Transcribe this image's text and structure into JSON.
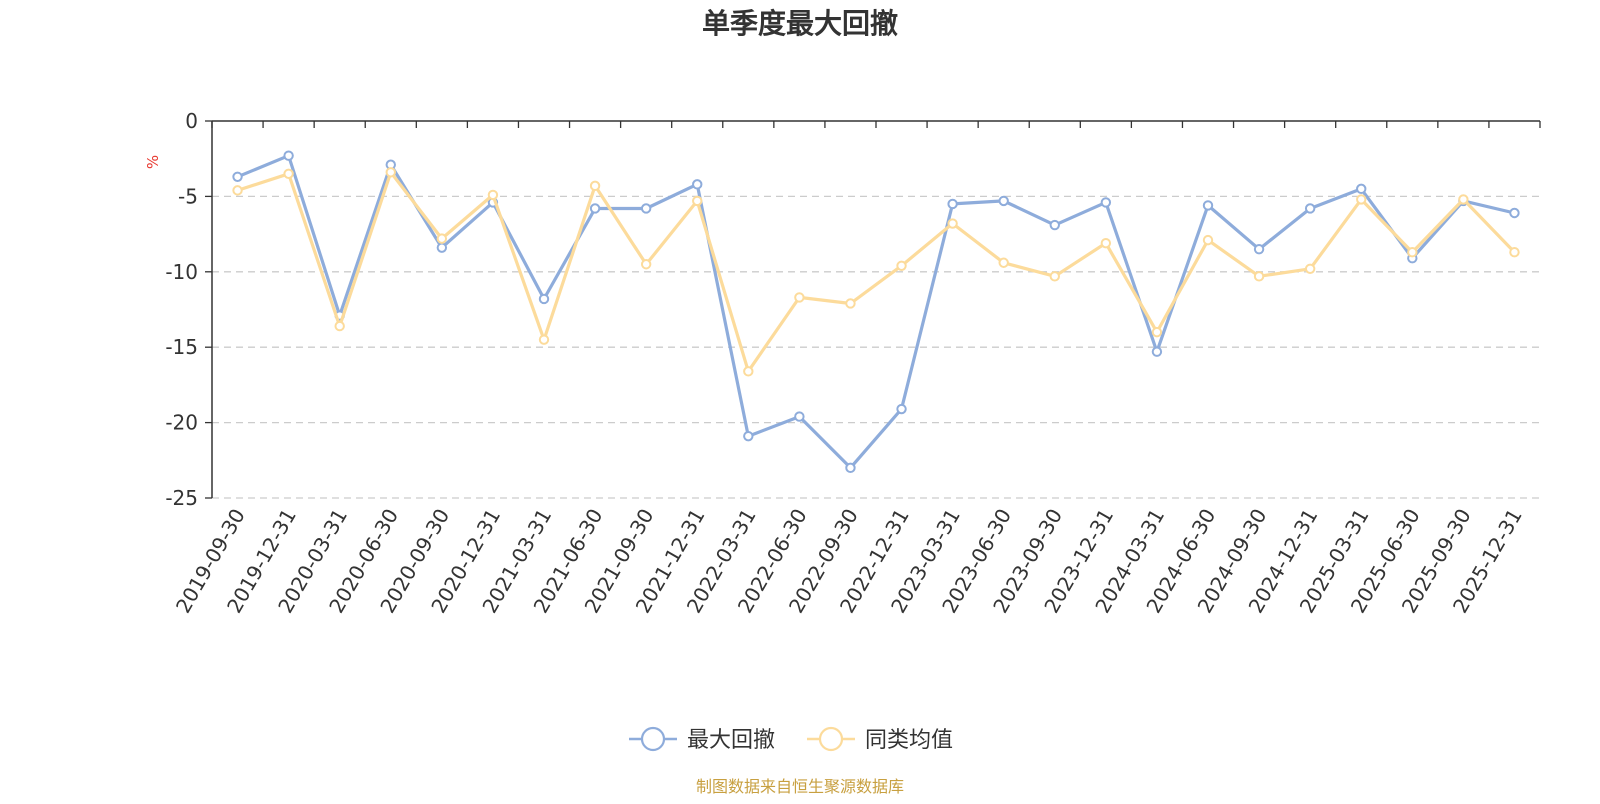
{
  "chart_data": {
    "type": "line",
    "title": "单季度最大回撤",
    "ylabel": "%",
    "ylim": [
      -25,
      0
    ],
    "yticks": [
      0,
      -5,
      -10,
      -15,
      -20,
      -25
    ],
    "grid": true,
    "legend_position": "bottom-center",
    "x": [
      "2019-09-30",
      "2019-12-31",
      "2020-03-31",
      "2020-06-30",
      "2020-09-30",
      "2020-12-31",
      "2021-03-31",
      "2021-06-30",
      "2021-09-30",
      "2021-12-31",
      "2022-03-31",
      "2022-06-30",
      "2022-09-30",
      "2022-12-31",
      "2023-03-31",
      "2023-06-30",
      "2023-09-30",
      "2023-12-31",
      "2024-03-31",
      "2024-06-30",
      "2024-09-30",
      "2024-12-31",
      "2025-03-31",
      "2025-06-30",
      "2025-09-30",
      "2025-12-31"
    ],
    "series": [
      {
        "name": "最大回撤",
        "color": "#8eacdb",
        "values": [
          -3.7,
          -2.3,
          -12.9,
          -2.9,
          -8.4,
          -5.4,
          -11.8,
          -5.8,
          -5.8,
          -4.2,
          -20.9,
          -19.6,
          -23.0,
          -19.1,
          -5.5,
          -5.3,
          -6.9,
          -5.4,
          -15.3,
          -5.6,
          -8.5,
          -5.8,
          -4.5,
          -9.1,
          -5.3,
          -6.1
        ]
      },
      {
        "name": "同类均值",
        "color": "#fcdb9b",
        "values": [
          -4.6,
          -3.5,
          -13.6,
          -3.4,
          -7.8,
          -4.9,
          -14.5,
          -4.3,
          -9.5,
          -5.3,
          -16.6,
          -11.7,
          -12.1,
          -9.6,
          -6.8,
          -9.4,
          -10.3,
          -8.1,
          -14.0,
          -7.9,
          -10.3,
          -9.8,
          -5.2,
          -8.7,
          -5.2,
          -8.7
        ]
      }
    ],
    "source": "制图数据来自恒生聚源数据库",
    "unit_color": "#e8382f",
    "source_color": "#c8a040"
  }
}
